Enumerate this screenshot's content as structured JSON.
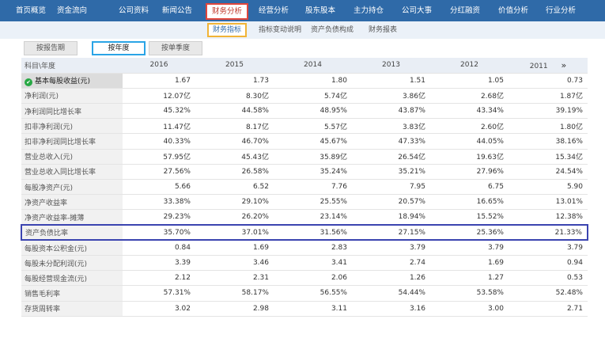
{
  "topnav": {
    "items": [
      "首页概览",
      "资金流向",
      "公司资料",
      "新闻公告",
      "财务分析",
      "经营分析",
      "股东股本",
      "主力持仓",
      "公司大事",
      "分红融资",
      "价值分析",
      "行业分析"
    ],
    "active_index": 4
  },
  "subnav": {
    "items": [
      "财务指标",
      "指标变动说明",
      "资产负债构成",
      "财务报表"
    ],
    "active_index": 0
  },
  "tabs": {
    "items": [
      "按报告期",
      "按年度",
      "按单季度"
    ],
    "active_index": 1
  },
  "table": {
    "corner_label": "科目\\年度",
    "years": [
      "2016",
      "2015",
      "2014",
      "2013",
      "2012",
      "2011"
    ],
    "more_icon": "double-chevron-right-icon",
    "rows": [
      {
        "label": "基本每股收益(元)",
        "values": [
          "1.67",
          "1.73",
          "1.80",
          "1.51",
          "1.05",
          "0.73"
        ],
        "unit": ""
      },
      {
        "label": "净利润(元)",
        "values": [
          "12.07",
          "8.30",
          "5.74",
          "3.86",
          "2.68",
          "1.87"
        ],
        "unit": "亿"
      },
      {
        "label": "净利润同比增长率",
        "values": [
          "45.32%",
          "44.58%",
          "48.95%",
          "43.87%",
          "43.34%",
          "39.19%"
        ],
        "unit": ""
      },
      {
        "label": "扣非净利润(元)",
        "values": [
          "11.47",
          "8.17",
          "5.57",
          "3.83",
          "2.60",
          "1.80"
        ],
        "unit": "亿"
      },
      {
        "label": "扣非净利润同比增长率",
        "values": [
          "40.33%",
          "46.70%",
          "45.67%",
          "47.33%",
          "44.05%",
          "38.16%"
        ],
        "unit": ""
      },
      {
        "label": "营业总收入(元)",
        "values": [
          "57.95",
          "45.43",
          "35.89",
          "26.54",
          "19.63",
          "15.34"
        ],
        "unit": "亿"
      },
      {
        "label": "营业总收入同比增长率",
        "values": [
          "27.56%",
          "26.58%",
          "35.24%",
          "35.21%",
          "27.96%",
          "24.54%"
        ],
        "unit": ""
      },
      {
        "label": "每股净资产(元)",
        "values": [
          "5.66",
          "6.52",
          "7.76",
          "7.95",
          "6.75",
          "5.90"
        ],
        "unit": ""
      },
      {
        "label": "净资产收益率",
        "values": [
          "33.38%",
          "29.10%",
          "25.55%",
          "20.57%",
          "16.65%",
          "13.01%"
        ],
        "unit": ""
      },
      {
        "label": "净资产收益率-摊薄",
        "values": [
          "29.23%",
          "26.20%",
          "23.14%",
          "18.94%",
          "15.52%",
          "12.38%"
        ],
        "unit": ""
      },
      {
        "label": "资产负债比率",
        "values": [
          "35.70%",
          "37.01%",
          "31.56%",
          "27.15%",
          "25.36%",
          "21.33%"
        ],
        "unit": "",
        "highlight": true
      },
      {
        "label": "每股资本公积金(元)",
        "values": [
          "0.84",
          "1.69",
          "2.83",
          "3.79",
          "3.79",
          "3.79"
        ],
        "unit": ""
      },
      {
        "label": "每股未分配利润(元)",
        "values": [
          "3.39",
          "3.46",
          "3.41",
          "2.74",
          "1.69",
          "0.94"
        ],
        "unit": ""
      },
      {
        "label": "每股经营现金流(元)",
        "values": [
          "2.12",
          "2.31",
          "2.06",
          "1.26",
          "1.27",
          "0.53"
        ],
        "unit": ""
      },
      {
        "label": "销售毛利率",
        "values": [
          "57.31%",
          "58.17%",
          "56.55%",
          "54.44%",
          "53.58%",
          "52.48%"
        ],
        "unit": ""
      },
      {
        "label": "存货周转率",
        "values": [
          "3.02",
          "2.98",
          "3.11",
          "3.16",
          "3.00",
          "2.71"
        ],
        "unit": ""
      }
    ]
  },
  "colors": {
    "nav_bg": "#2f6aa8",
    "active_red": "#e0463c",
    "sub_active_yellow": "#f1b437",
    "tab_active_blue": "#2aa4e6",
    "row_highlight": "#3b44b0",
    "check_green": "#27a844"
  }
}
